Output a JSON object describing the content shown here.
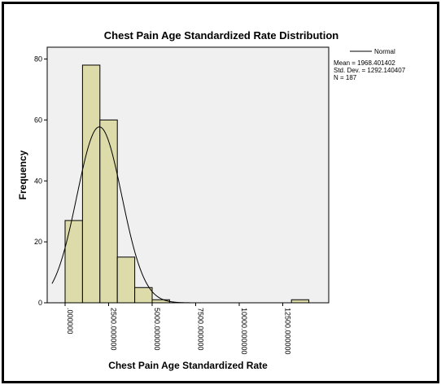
{
  "colors": {
    "plot_background": "#f0f0f0",
    "bar_fill": "#dddbaa",
    "bar_stroke": "#000000",
    "curve": "#000000",
    "frame": "#000000"
  },
  "chart_data": {
    "type": "bar",
    "title": "Chest Pain Age Standardized Rate Distribution",
    "xlabel": "Chest Pain Age Standardized Rate",
    "ylabel": "Frequency",
    "xlim": [
      -750,
      15000
    ],
    "ylim": [
      0,
      85
    ],
    "bin_width": 1000,
    "bins": [
      {
        "start": 0,
        "end": 1000,
        "count": 27
      },
      {
        "start": 1000,
        "end": 2000,
        "count": 78
      },
      {
        "start": 2000,
        "end": 3000,
        "count": 60
      },
      {
        "start": 3000,
        "end": 4000,
        "count": 15
      },
      {
        "start": 4000,
        "end": 5000,
        "count": 5
      },
      {
        "start": 5000,
        "end": 6000,
        "count": 1
      },
      {
        "start": 13000,
        "end": 14000,
        "count": 1
      }
    ],
    "x_ticks": [
      {
        "value": 0,
        "label": ".000000"
      },
      {
        "value": 2500,
        "label": "2500.000000"
      },
      {
        "value": 5000,
        "label": "5000.000000"
      },
      {
        "value": 7500,
        "label": "7500.000000"
      },
      {
        "value": 10000,
        "label": "10000.000000"
      },
      {
        "value": 12500,
        "label": "12500.000000"
      }
    ],
    "y_ticks": [
      {
        "value": 0,
        "label": "0"
      },
      {
        "value": 20,
        "label": "20"
      },
      {
        "value": 40,
        "label": "40"
      },
      {
        "value": 60,
        "label": "60"
      },
      {
        "value": 80,
        "label": "80"
      }
    ],
    "normal_curve": {
      "mean": 1968.401402,
      "std_dev": 1292.140407,
      "n": 187
    },
    "legend": {
      "entry": "Normal",
      "placement": "top-right"
    },
    "stats_text": {
      "mean": "Mean = 1968.401402",
      "std_dev": "Std. Dev. = 1292.140407",
      "n": "N = 187"
    },
    "grid": false
  }
}
